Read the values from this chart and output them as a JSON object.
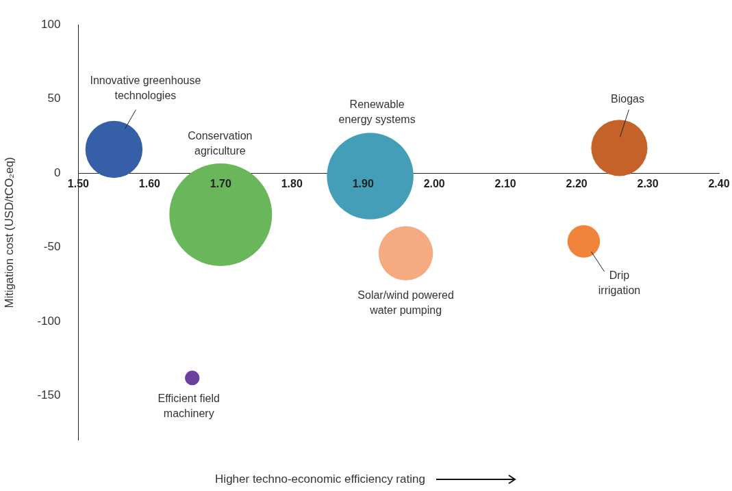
{
  "chart_data": {
    "type": "bubble",
    "annotations": [
      "Higher techno-economic efficiency rating"
    ],
    "ylabel": "Mitigation cost (USD/tCO₂eq)",
    "xlim": [
      1.5,
      2.4
    ],
    "xticks": [
      {
        "value": 1.5,
        "label": "1.50"
      },
      {
        "value": 1.6,
        "label": "1.60"
      },
      {
        "value": 1.7,
        "label": "1.70"
      },
      {
        "value": 1.8,
        "label": "1.80"
      },
      {
        "value": 1.9,
        "label": "1.90"
      },
      {
        "value": 2.0,
        "label": "2.00"
      },
      {
        "value": 2.1,
        "label": "2.10"
      },
      {
        "value": 2.2,
        "label": "2.20"
      },
      {
        "value": 2.3,
        "label": "2.30"
      },
      {
        "value": 2.4,
        "label": "2.40"
      }
    ],
    "ylim": [
      -180,
      100
    ],
    "yticks": [
      100,
      50,
      0,
      -50,
      -100,
      -150
    ],
    "grid": false,
    "legend": false,
    "series": [
      {
        "name": "Innovative greenhouse technologies",
        "color": "#3560a8",
        "x": [
          1.55
        ],
        "values": [
          16
        ],
        "sizes": [
          0.31
        ]
      },
      {
        "name": "Conservation agriculture",
        "color": "#6ab65a",
        "x": [
          1.7
        ],
        "values": [
          -28
        ],
        "sizes": [
          1
        ]
      },
      {
        "name": "Renewable energy systems",
        "color": "#449eb8",
        "x": [
          1.91
        ],
        "values": [
          -2
        ],
        "sizes": [
          0.71
        ]
      },
      {
        "name": "Solar/wind powered water pumping",
        "color": "#f5aa80",
        "x": [
          1.96
        ],
        "values": [
          -54
        ],
        "sizes": [
          0.28
        ]
      },
      {
        "name": "Biogas",
        "color": "#c4622a",
        "x": [
          2.26
        ],
        "values": [
          17
        ],
        "sizes": [
          0.3
        ]
      },
      {
        "name": "Drip irrigation",
        "color": "#f0843a",
        "x": [
          2.21
        ],
        "values": [
          -46
        ],
        "sizes": [
          0.1
        ]
      },
      {
        "name": "Efficient field machinery",
        "color": "#6b3fa0",
        "x": [
          1.66
        ],
        "values": [
          -138
        ],
        "sizes": [
          0.02
        ]
      }
    ]
  }
}
